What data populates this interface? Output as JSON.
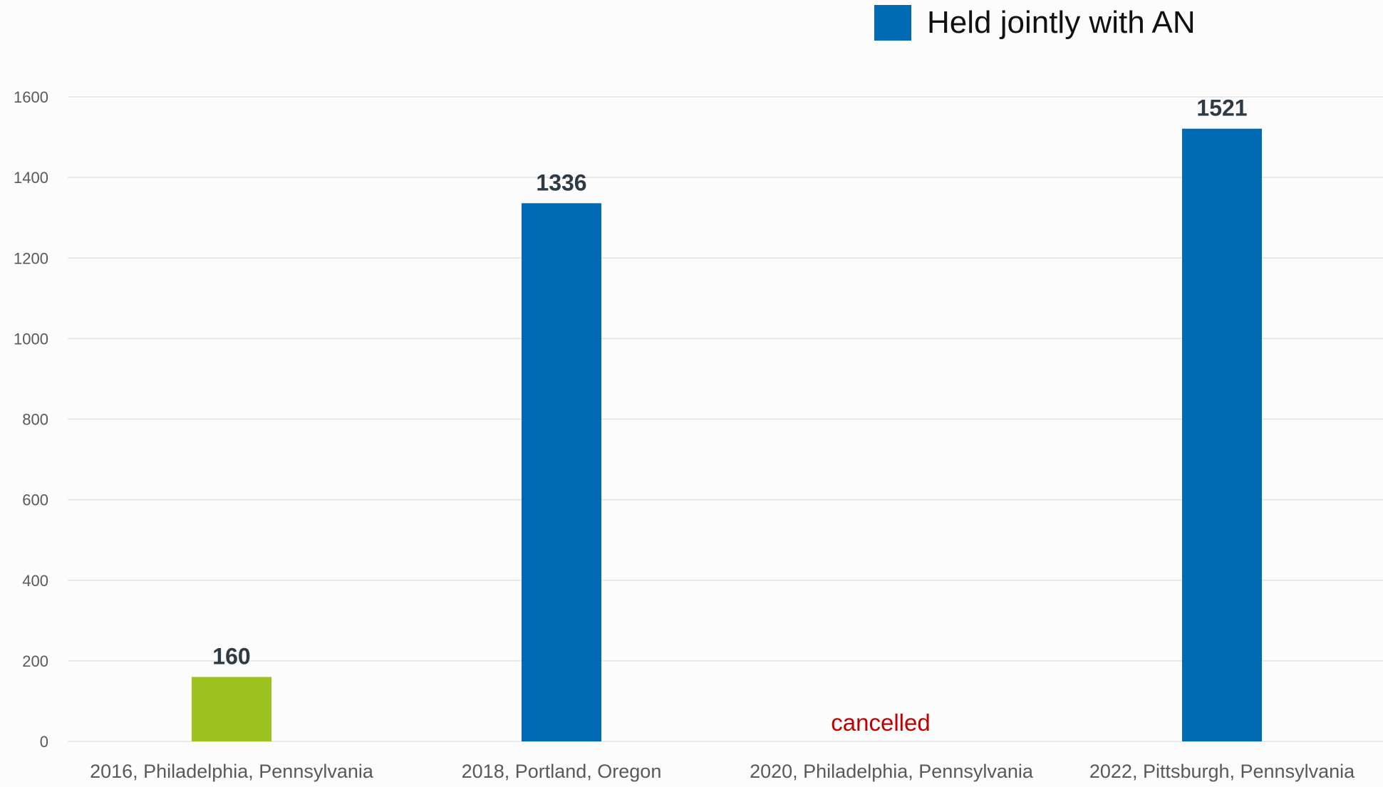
{
  "chart_data": {
    "type": "bar",
    "categories": [
      "2016, Philadelphia, Pennsylvania",
      "2018, Portland, Oregon",
      "2020, Philadelphia, Pennsylvania",
      "2022, Pittsburgh, Pennsylvania"
    ],
    "values": [
      160,
      1336,
      null,
      1521
    ],
    "data_labels": [
      "160",
      "1336",
      "",
      "1521"
    ],
    "bar_colors": [
      "#9bc21e",
      "#006bb4",
      null,
      "#006bb4"
    ],
    "annotations": [
      {
        "category_index": 2,
        "text": "cancelled",
        "color": "#c00000"
      }
    ],
    "legend": [
      {
        "label": "Held jointly with AN",
        "color": "#006bb4"
      }
    ],
    "legend_position": "top-right",
    "ylim": [
      0,
      1600
    ],
    "yticks": [
      0,
      200,
      400,
      600,
      800,
      1000,
      1200,
      1400,
      1600
    ],
    "grid": true,
    "title": "",
    "xlabel": "",
    "ylabel": ""
  },
  "colors": {
    "grid": "#e3e3e3",
    "tick_text": "#595959",
    "data_label": "#2e3a44",
    "background": "#fcfcfc"
  }
}
